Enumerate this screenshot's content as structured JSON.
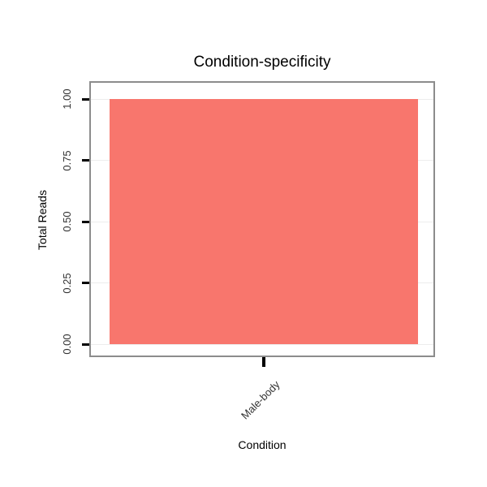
{
  "chart_data": {
    "type": "bar",
    "title": "Condition-specificity",
    "xlabel": "Condition",
    "ylabel": "Total Reads",
    "categories": [
      "Male-body"
    ],
    "values": [
      1.0
    ],
    "ylim": [
      0,
      1.0
    ],
    "yticks": [
      0.0,
      0.25,
      0.5,
      0.75,
      1.0
    ],
    "ytick_labels": [
      "0.00",
      "0.25",
      "0.50",
      "0.75",
      "1.00"
    ],
    "grid": true,
    "legend_position": "none",
    "bar_color": "#F8766D",
    "panel_border_color": "#8C8C8C",
    "gridline_color": "#EDEDED",
    "tick_color": "#000000"
  }
}
